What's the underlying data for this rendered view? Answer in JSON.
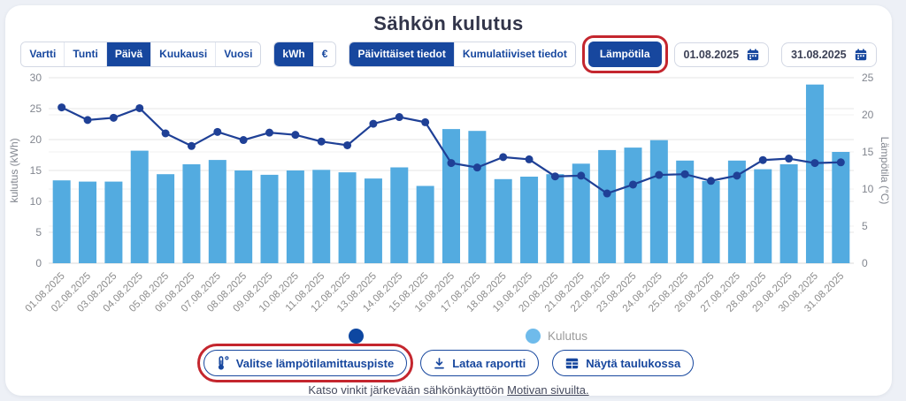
{
  "page": {
    "title": "Sähkön kulutus"
  },
  "controls": {
    "period": {
      "items": [
        {
          "label": "Vartti",
          "selected": false
        },
        {
          "label": "Tunti",
          "selected": false
        },
        {
          "label": "Päivä",
          "selected": true
        },
        {
          "label": "Kuukausi",
          "selected": false
        },
        {
          "label": "Vuosi",
          "selected": false
        }
      ]
    },
    "unit": {
      "items": [
        {
          "label": "kWh",
          "selected": true
        },
        {
          "label": "€",
          "selected": false
        }
      ]
    },
    "data_type": {
      "items": [
        {
          "label": "Päivittäiset tiedot",
          "selected": true
        },
        {
          "label": "Kumulatiiviset tiedot",
          "selected": false
        }
      ]
    },
    "temperature_toggle": {
      "label": "Lämpötila",
      "selected": true
    },
    "date_from": "01.08.2025",
    "date_to": "31.08.2025"
  },
  "chart_data": {
    "type": "bar",
    "title": "Sähkön kulutus",
    "categories": [
      "01.08.2025",
      "02.08.2025",
      "03.08.2025",
      "04.08.2025",
      "05.08.2025",
      "06.08.2025",
      "07.08.2025",
      "08.08.2025",
      "09.08.2025",
      "10.08.2025",
      "11.08.2025",
      "12.08.2025",
      "13.08.2025",
      "14.08.2025",
      "15.08.2025",
      "16.08.2025",
      "17.08.2025",
      "18.08.2025",
      "19.08.2025",
      "20.08.2025",
      "21.08.2025",
      "22.08.2025",
      "23.08.2025",
      "24.08.2025",
      "25.08.2025",
      "26.08.2025",
      "27.08.2025",
      "28.08.2025",
      "29.08.2025",
      "30.08.2025",
      "31.08.2025"
    ],
    "series": [
      {
        "name": "Kulutus",
        "type": "bar",
        "axis": "left",
        "color": "#53ABE0",
        "values": [
          13.4,
          13.2,
          13.2,
          18.2,
          14.4,
          16.0,
          16.7,
          15.0,
          14.3,
          15.0,
          15.1,
          14.7,
          13.7,
          15.5,
          12.5,
          21.7,
          21.4,
          13.6,
          14.0,
          14.4,
          16.1,
          18.3,
          18.7,
          19.9,
          16.6,
          13.3,
          16.6,
          15.2,
          16.0,
          28.9,
          18.0
        ]
      },
      {
        "name": "",
        "type": "line",
        "axis": "right",
        "color": "#1F4096",
        "values": [
          21.0,
          19.3,
          19.6,
          20.9,
          17.5,
          15.8,
          17.7,
          16.6,
          17.6,
          17.3,
          16.4,
          15.9,
          18.8,
          19.7,
          19.0,
          13.5,
          12.9,
          14.3,
          14.0,
          11.7,
          11.8,
          9.4,
          10.6,
          11.9,
          12.0,
          11.1,
          11.8,
          13.9,
          14.1,
          13.5,
          13.6
        ]
      }
    ],
    "left_axis": {
      "label": "kulutus (kWh)",
      "min": 0,
      "max": 30,
      "ticks": [
        0,
        5,
        10,
        15,
        20,
        25,
        30
      ]
    },
    "right_axis": {
      "label": "Lämpötila (°C)",
      "min": 0,
      "max": 25,
      "ticks": [
        0,
        5,
        10,
        15,
        20,
        25
      ]
    },
    "legend": [
      {
        "label": "",
        "color": "#0D47A1"
      },
      {
        "label": "Kulutus",
        "color": "#6FBBEB"
      }
    ],
    "grid": true,
    "legend_position": "bottom"
  },
  "actions": {
    "select_temp_point": "Valitse lämpötilamittauspiste",
    "download_report": "Lataa raportti",
    "show_table": "Näytä taulukossa"
  },
  "footer": {
    "text": "Katso vinkit järkevään sähkönkäyttöön",
    "link": "Motivan sivuilta."
  },
  "annotations": {
    "highlight_color": "#C4262E"
  }
}
